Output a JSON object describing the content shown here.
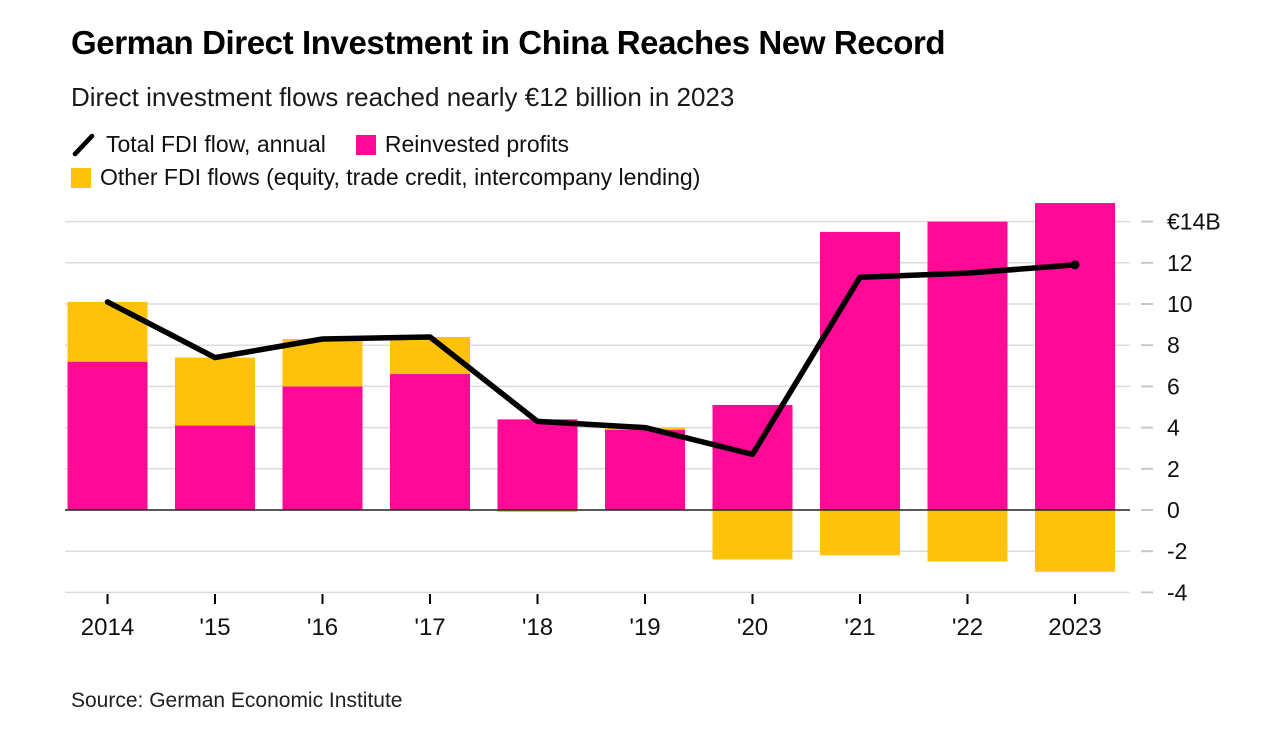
{
  "header": {
    "title": "German Direct Investment in China Reaches New Record",
    "subtitle": "Direct investment flows reached nearly €12 billion in 2023"
  },
  "legend": {
    "items": [
      {
        "icon": "line-series-icon",
        "label": "Total FDI flow, annual",
        "color": "#000000"
      },
      {
        "icon": "bar-swatch-icon",
        "label": "Reinvested profits",
        "color": "#ff0a96"
      },
      {
        "icon": "bar-swatch-icon",
        "label": "Other FDI flows (equity, trade credit, intercompany lending)",
        "color": "#ffc20a"
      }
    ]
  },
  "chart_data": {
    "type": "bar",
    "subtype": "stacked-bars-with-total-line",
    "title": "German Direct Investment in China Reaches New Record",
    "subtitle": "Direct investment flows reached nearly €12 billion in 2023",
    "unit": "€ billion",
    "categories": [
      "2014",
      "'15",
      "'16",
      "'17",
      "'18",
      "'19",
      "'20",
      "'21",
      "'22",
      "2023"
    ],
    "series": [
      {
        "name": "Reinvested profits",
        "type": "bar",
        "color": "#ff0a96",
        "values": [
          7.2,
          4.1,
          6.0,
          6.6,
          4.4,
          3.9,
          5.1,
          13.5,
          14.0,
          14.9
        ]
      },
      {
        "name": "Other FDI flows (equity, trade credit, intercompany lending)",
        "type": "bar",
        "color": "#ffc20a",
        "values": [
          2.9,
          3.3,
          2.3,
          1.8,
          -0.1,
          0.1,
          -2.4,
          -2.2,
          -2.5,
          -3.0
        ]
      },
      {
        "name": "Total FDI flow, annual",
        "type": "line",
        "color": "#000000",
        "values": [
          10.1,
          7.4,
          8.3,
          8.4,
          4.3,
          4.0,
          2.7,
          11.3,
          11.5,
          11.9
        ]
      }
    ],
    "yticks": [
      14,
      12,
      10,
      8,
      6,
      4,
      2,
      0,
      -2,
      -4
    ],
    "ytick_labels": [
      "€14B",
      "12",
      "10",
      "8",
      "6",
      "4",
      "2",
      "0",
      "-2",
      "-4"
    ],
    "ylim": [
      -4.4,
      15.3
    ],
    "grid": true,
    "legend_position": "top",
    "axis_colors": {
      "gridline": "#dcdcdc",
      "zero_line": "#222222",
      "ytick_dash": "#c8c8c8",
      "xtick": "#000000",
      "label": "#111111"
    }
  },
  "source": {
    "text": "Source: German Economic Institute"
  }
}
